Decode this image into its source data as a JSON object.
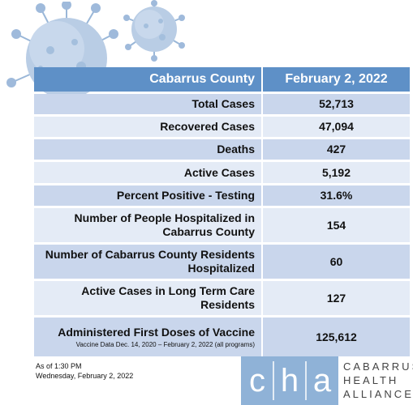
{
  "table": {
    "header": {
      "label": "Cabarrus County",
      "value": "February 2, 2022"
    },
    "rows": [
      {
        "label": "Total Cases",
        "value": "52,713"
      },
      {
        "label": "Recovered Cases",
        "value": "47,094"
      },
      {
        "label": "Deaths",
        "value": "427"
      },
      {
        "label": "Active Cases",
        "value": "5,192"
      },
      {
        "label": "Percent Positive - Testing",
        "value": "31.6%"
      },
      {
        "label": "Number of People Hospitalized in Cabarrus County",
        "value": "154"
      },
      {
        "label": "Number of Cabarrus County Residents Hospitalized",
        "value": "60"
      },
      {
        "label": "Active Cases in Long Term Care Residents",
        "value": "127"
      },
      {
        "label": "Administered First Doses of Vaccine",
        "note": "Vaccine Data Dec. 14, 2020 – February 2, 2022 (all programs)",
        "value": "125,612"
      }
    ]
  },
  "footer": {
    "as_of": "As of 1:30 PM",
    "date": "Wednesday, February 2, 2022"
  },
  "logo": {
    "letters": [
      "c",
      "h",
      "a"
    ],
    "lines": [
      "CABARRUS",
      "HEALTH",
      "ALLIANCE"
    ]
  },
  "colors": {
    "header": "#5e90c7",
    "row_dark": "#c9d6ec",
    "row_light": "#e4ebf6",
    "logo": "#8fb2d7"
  }
}
